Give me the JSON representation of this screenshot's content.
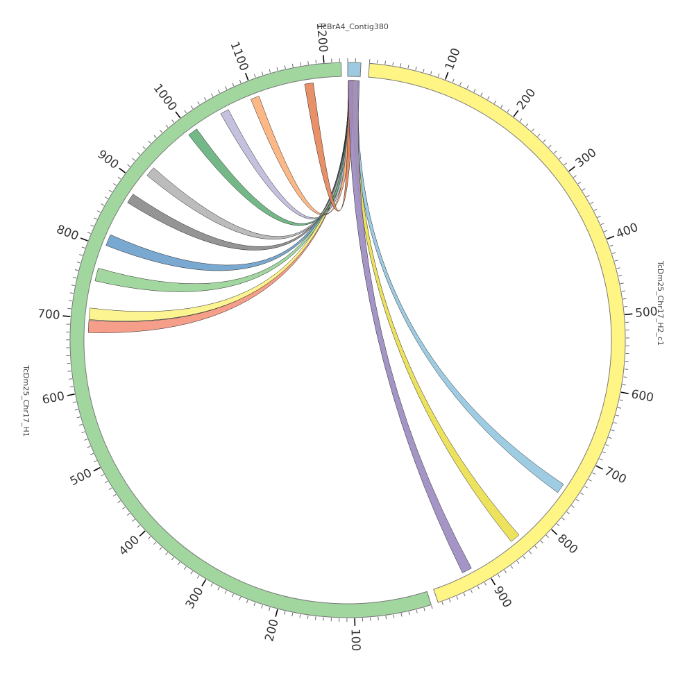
{
  "chromosomes": [
    {
      "id": "contig",
      "name": "TcBrA4_Contig380",
      "length": 17,
      "color": "#9ecae1"
    },
    {
      "id": "h2",
      "name": "TcDm25_Chr17_H2_c1",
      "length": 975,
      "color": "#fff585"
    },
    {
      "id": "h1",
      "name": "TcDm25_Chr17_H1",
      "length": 1222,
      "color": "#a1d79f"
    }
  ],
  "ticks": {
    "minor_interval": 10,
    "major_interval": 100
  },
  "links": [
    {
      "source": "contig",
      "s": [
        2,
        9
      ],
      "target": "h1",
      "t": [
        680,
        697
      ],
      "color": "#f4937c"
    },
    {
      "source": "contig",
      "s": [
        2,
        9
      ],
      "target": "h1",
      "t": [
        698,
        714
      ],
      "color": "#fcf384"
    },
    {
      "source": "contig",
      "s": [
        2,
        8
      ],
      "target": "h1",
      "t": [
        752,
        770
      ],
      "color": "#98d396"
    },
    {
      "source": "contig",
      "s": [
        2,
        8
      ],
      "target": "h1",
      "t": [
        803,
        819
      ],
      "color": "#6a9ecb"
    },
    {
      "source": "contig",
      "s": [
        2,
        8
      ],
      "target": "h1",
      "t": [
        869,
        883
      ],
      "color": "#8a8a8a"
    },
    {
      "source": "contig",
      "s": [
        2,
        8
      ],
      "target": "h1",
      "t": [
        915,
        929
      ],
      "color": "#b5b5b5"
    },
    {
      "source": "contig",
      "s": [
        1,
        8
      ],
      "target": "h1",
      "t": [
        995,
        1009
      ],
      "color": "#65b07b"
    },
    {
      "source": "contig",
      "s": [
        1,
        8
      ],
      "target": "h1",
      "t": [
        1048,
        1060
      ],
      "color": "#bcbad9"
    },
    {
      "source": "contig",
      "s": [
        1,
        8
      ],
      "target": "h1",
      "t": [
        1094,
        1106
      ],
      "color": "#fdb07b"
    },
    {
      "source": "contig",
      "s": [
        1,
        8
      ],
      "target": "h1",
      "t": [
        1171,
        1183
      ],
      "color": "#e58456"
    },
    {
      "source": "contig",
      "s": [
        8,
        15
      ],
      "target": "h2",
      "t": [
        743,
        757
      ],
      "color": "#93c6e0"
    },
    {
      "source": "contig",
      "s": [
        7,
        14
      ],
      "target": "h2",
      "t": [
        836,
        850
      ],
      "color": "#ebdf4d"
    },
    {
      "source": "contig",
      "s": [
        1,
        16
      ],
      "target": "h2",
      "t": [
        916,
        930
      ],
      "color": "#9b89c0"
    }
  ]
}
